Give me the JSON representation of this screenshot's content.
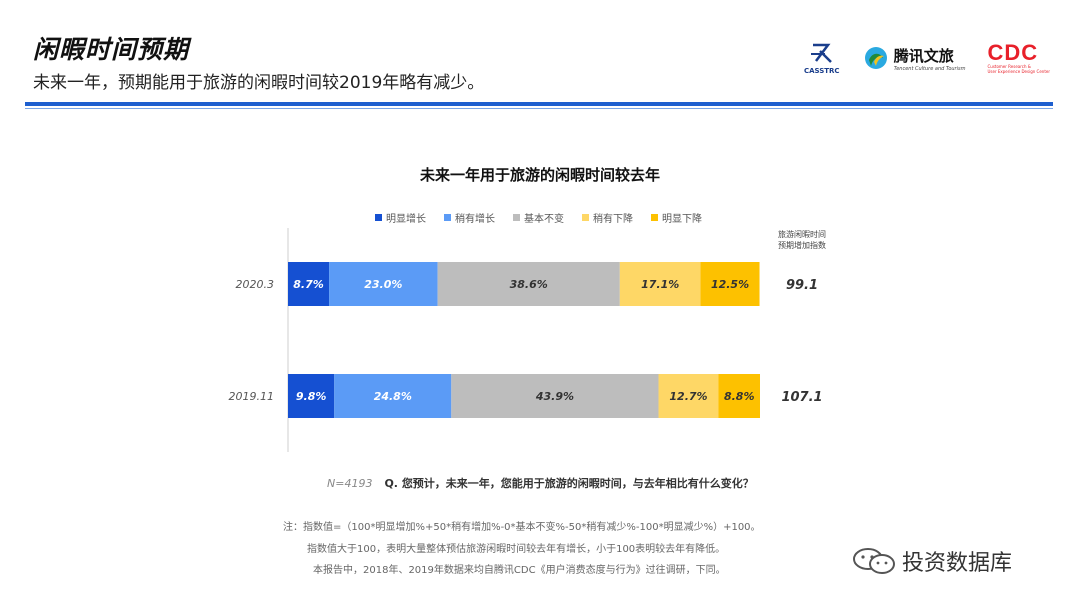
{
  "header": {
    "title": "闲暇时间预期",
    "subtitle": "未来一年，预期能用于旅游的闲暇时间较2019年略有减少。"
  },
  "logos": {
    "casstrc": "CASSTRC",
    "tencent_name": "腾讯文旅",
    "tencent_sub": "Tencent Culture and Tourism",
    "cdc": "CDC",
    "cdc_sub_1": "Customer Research &",
    "cdc_sub_2": "User Experience Design Center"
  },
  "colors": {
    "accent": "#1e5fcf",
    "series": [
      "#1550d2",
      "#5b9bf6",
      "#bdbdbd",
      "#fed766",
      "#fdc100"
    ]
  },
  "chart_data": {
    "type": "bar",
    "orientation": "horizontal-stacked-100",
    "title": "未来一年用于旅游的闲暇时间较去年",
    "categories": [
      "2020.3",
      "2019.11"
    ],
    "series": [
      {
        "name": "明显增长",
        "values": [
          8.7,
          9.8
        ]
      },
      {
        "name": "稍有增长",
        "values": [
          23.0,
          24.8
        ]
      },
      {
        "name": "基本不变",
        "values": [
          38.6,
          43.9
        ]
      },
      {
        "name": "稍有下降",
        "values": [
          17.1,
          12.7
        ]
      },
      {
        "name": "明显下降",
        "values": [
          12.5,
          8.8
        ]
      }
    ],
    "value_labels": [
      [
        "8.7%",
        "23.0%",
        "38.6%",
        "17.1%",
        "12.5%"
      ],
      [
        "9.8%",
        "24.8%",
        "43.9%",
        "12.7%",
        "8.8%"
      ]
    ],
    "index_title_1": "旅游闲暇时间",
    "index_title_2": "预期增加指数",
    "index_values": [
      "99.1",
      "107.1"
    ],
    "xlim": [
      0,
      100
    ],
    "legend_position": "top"
  },
  "notes": {
    "sample": "N=4193",
    "question": "Q. 您预计，未来一年，您能用于旅游的闲暇时间，与去年相比有什么变化？",
    "line1": "注：指数值=（100*明显增加%+50*稍有增加%-0*基本不变%-50*稍有减少%-100*明显减少%）+100。",
    "line2": "指数值大于100，表明大量整体预估旅游闲暇时间较去年有增长，小于100表明较去年有降低。",
    "line3": "本报告中，2018年、2019年数据来均自腾讯CDC《用户消费态度与行为》过往调研，下同。"
  },
  "watermark": "投资数据库"
}
